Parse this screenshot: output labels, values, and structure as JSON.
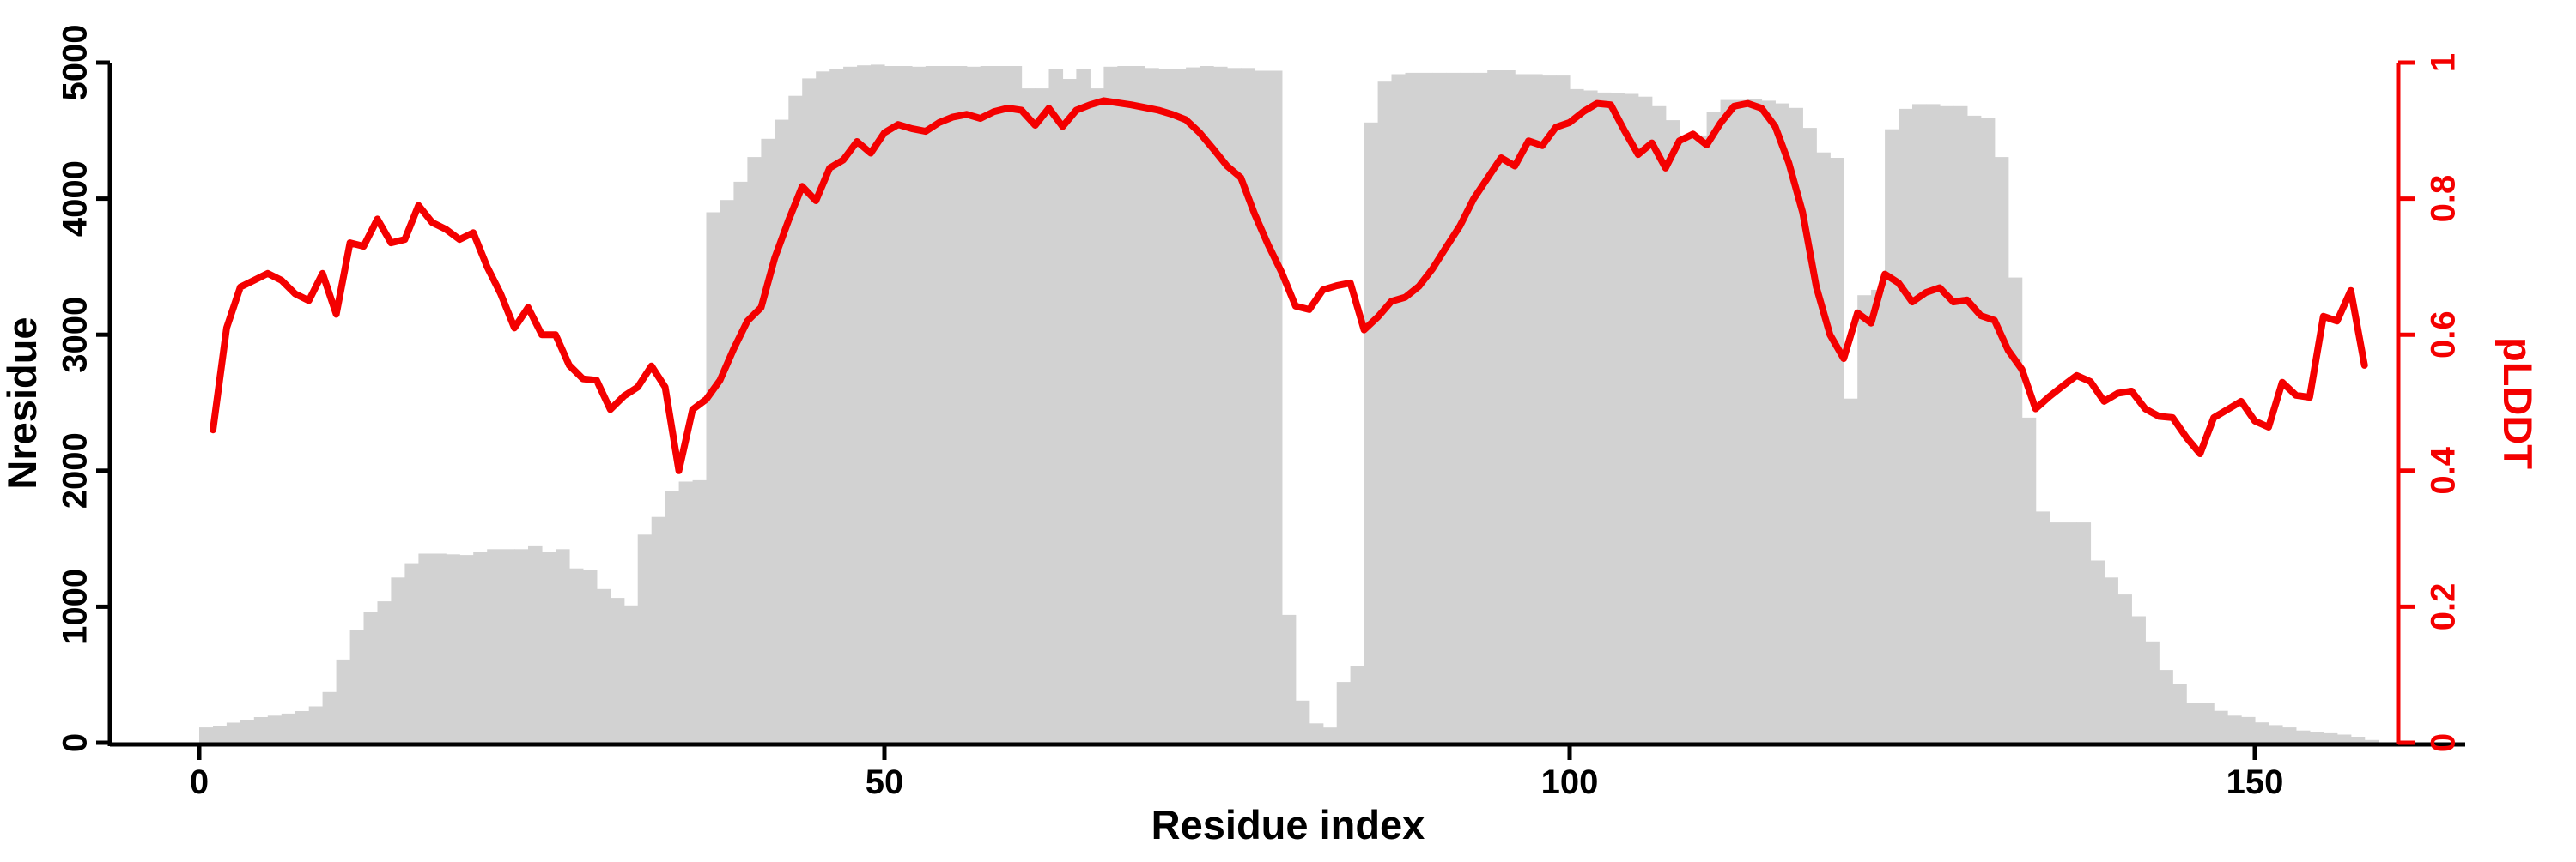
{
  "chart_data": {
    "type": "bar",
    "subtype": "dual-axis bar+line",
    "title": "",
    "xlabel": "Residue index",
    "ylabel_left": "Nresidue",
    "ylabel_right": "pLDDT",
    "x_tick_labels": [
      "0",
      "50",
      "100",
      "150"
    ],
    "x_tick_values": [
      0,
      50,
      100,
      150
    ],
    "xlim": [
      0,
      160
    ],
    "y_left_tick_labels": [
      "0",
      "1000",
      "2000",
      "3000",
      "4000",
      "5000"
    ],
    "y_left_tick_values": [
      0,
      1000,
      2000,
      3000,
      4000,
      5000
    ],
    "ylim_left": [
      0,
      5000
    ],
    "y_right_tick_labels": [
      "0",
      "0.2",
      "0.4",
      "0.6",
      "0.8",
      "1"
    ],
    "y_right_tick_values": [
      0,
      0.2,
      0.4,
      0.6,
      0.8,
      1
    ],
    "ylim_right": [
      0,
      1
    ],
    "grid": false,
    "legend": "none",
    "bar_color": "#d2d2d2",
    "line_color": "#f40000",
    "axis_color_left": "#000000",
    "axis_color_right": "#f40000",
    "bars": {
      "name": "Nresidue",
      "start_residue": 0,
      "values": [
        113,
        120,
        148,
        164,
        189,
        200,
        215,
        233,
        268,
        373,
        612,
        830,
        963,
        1040,
        1215,
        1320,
        1390,
        1390,
        1385,
        1380,
        1405,
        1423,
        1423,
        1423,
        1451,
        1405,
        1423,
        1282,
        1270,
        1130,
        1065,
        1010,
        1530,
        1660,
        1850,
        1920,
        1930,
        3900,
        3990,
        4124,
        4306,
        4440,
        4580,
        4756,
        4884,
        4935,
        4955,
        4970,
        4980,
        4985,
        4975,
        4975,
        4970,
        4975,
        4975,
        4975,
        4970,
        4975,
        4975,
        4975,
        4810,
        4810,
        4950,
        4880,
        4950,
        4810,
        4970,
        4975,
        4975,
        4960,
        4950,
        4955,
        4965,
        4975,
        4970,
        4960,
        4960,
        4940,
        4940,
        940,
        310,
        143,
        112,
        447,
        563,
        4560,
        4860,
        4915,
        4925,
        4925,
        4925,
        4925,
        4925,
        4925,
        4943,
        4943,
        4915,
        4915,
        4905,
        4905,
        4805,
        4795,
        4780,
        4775,
        4770,
        4750,
        4680,
        4577,
        4465,
        4465,
        4634,
        4725,
        4725,
        4735,
        4720,
        4700,
        4667,
        4520,
        4340,
        4300,
        2530,
        3290,
        3330,
        4510,
        4660,
        4695,
        4695,
        4680,
        4680,
        4610,
        4590,
        4306,
        3420,
        2390,
        1700,
        1620,
        1620,
        1620,
        1340,
        1215,
        1090,
        930,
        745,
        535,
        430,
        290,
        290,
        235,
        200,
        190,
        150,
        130,
        113,
        90,
        78,
        70,
        60,
        44,
        20
      ]
    },
    "line": {
      "name": "pLDDT",
      "start_residue": 1,
      "values": [
        0.46,
        0.61,
        0.67,
        0.68,
        0.69,
        0.68,
        0.66,
        0.65,
        0.69,
        0.63,
        0.735,
        0.73,
        0.77,
        0.735,
        0.74,
        0.79,
        0.765,
        0.755,
        0.74,
        0.75,
        0.7,
        0.66,
        0.61,
        0.64,
        0.6,
        0.6,
        0.555,
        0.535,
        0.533,
        0.49,
        0.51,
        0.523,
        0.554,
        0.523,
        0.4,
        0.49,
        0.505,
        0.533,
        0.579,
        0.62,
        0.64,
        0.713,
        0.768,
        0.818,
        0.797,
        0.845,
        0.857,
        0.884,
        0.867,
        0.897,
        0.909,
        0.903,
        0.899,
        0.912,
        0.92,
        0.924,
        0.918,
        0.928,
        0.933,
        0.93,
        0.908,
        0.933,
        0.906,
        0.93,
        0.938,
        0.944,
        0.941,
        0.938,
        0.934,
        0.93,
        0.924,
        0.916,
        0.897,
        0.873,
        0.848,
        0.831,
        0.778,
        0.732,
        0.691,
        0.642,
        0.637,
        0.666,
        0.672,
        0.676,
        0.607,
        0.626,
        0.649,
        0.655,
        0.671,
        0.697,
        0.729,
        0.76,
        0.8,
        0.83,
        0.86,
        0.848,
        0.885,
        0.878,
        0.905,
        0.912,
        0.928,
        0.94,
        0.938,
        0.9,
        0.865,
        0.882,
        0.845,
        0.885,
        0.895,
        0.879,
        0.911,
        0.936,
        0.94,
        0.933,
        0.906,
        0.852,
        0.78,
        0.67,
        0.6,
        0.565,
        0.632,
        0.617,
        0.689,
        0.676,
        0.648,
        0.662,
        0.669,
        0.648,
        0.651,
        0.628,
        0.621,
        0.577,
        0.549,
        0.491,
        0.509,
        0.525,
        0.54,
        0.531,
        0.502,
        0.514,
        0.517,
        0.491,
        0.48,
        0.478,
        0.449,
        0.425,
        0.478,
        0.49,
        0.502,
        0.473,
        0.464,
        0.53,
        0.511,
        0.508,
        0.627,
        0.62,
        0.665,
        0.555
      ]
    }
  }
}
